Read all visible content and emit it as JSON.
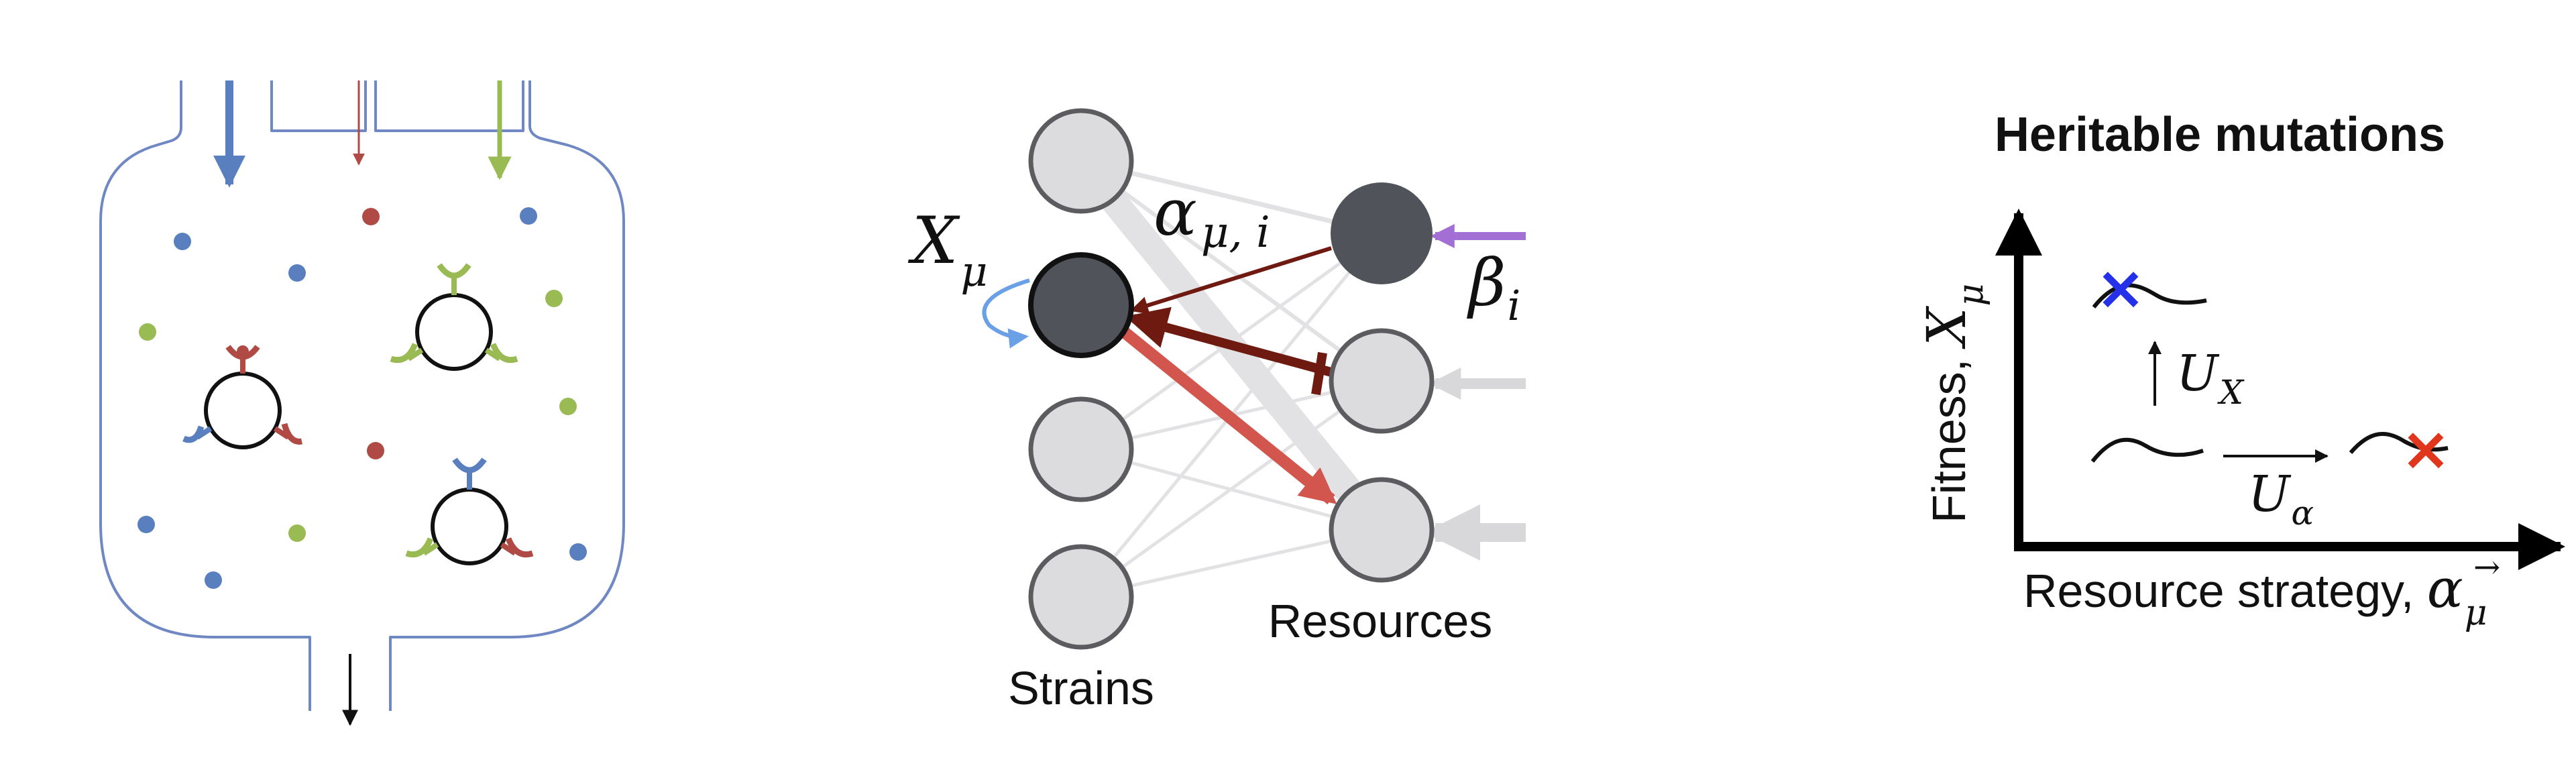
{
  "panel_network": {
    "strains_label": "Strains",
    "resources_label": "Resources",
    "x_mu": {
      "main": "X",
      "sub": "μ"
    },
    "alpha": {
      "main": "α",
      "sub": "μ, i"
    },
    "beta": {
      "main": "β",
      "sub": "i"
    }
  },
  "panel_mutations": {
    "title": "Heritable mutations",
    "y_axis": {
      "text": "Fitness, ",
      "main": "X",
      "sub": "μ"
    },
    "x_axis": {
      "text": "Resource strategy, ",
      "main": "α",
      "accent": "→",
      "sub": "μ"
    },
    "u_x": {
      "main": "U",
      "sub": "X"
    },
    "u_alpha": {
      "main": "U",
      "sub": "α"
    }
  },
  "colors": {
    "outline_blue": "#6f87c2",
    "resource_blue": "#5a7fbf",
    "resource_red": "#b04a45",
    "resource_green": "#9aba54",
    "node_light": "#dcdcde",
    "node_dark": "#50535a",
    "interaction_dark": "#6e1a10",
    "interaction_salmon": "#d2564e",
    "self_arrow": "#6aa0e6",
    "supply_purple": "#a46fd4",
    "mutation_blue": "#2531e8",
    "mutation_red": "#e0361b"
  },
  "icons": [
    "chemostat-vessel",
    "microbe-icon",
    "resource-dot",
    "mutation-x-icon"
  ]
}
